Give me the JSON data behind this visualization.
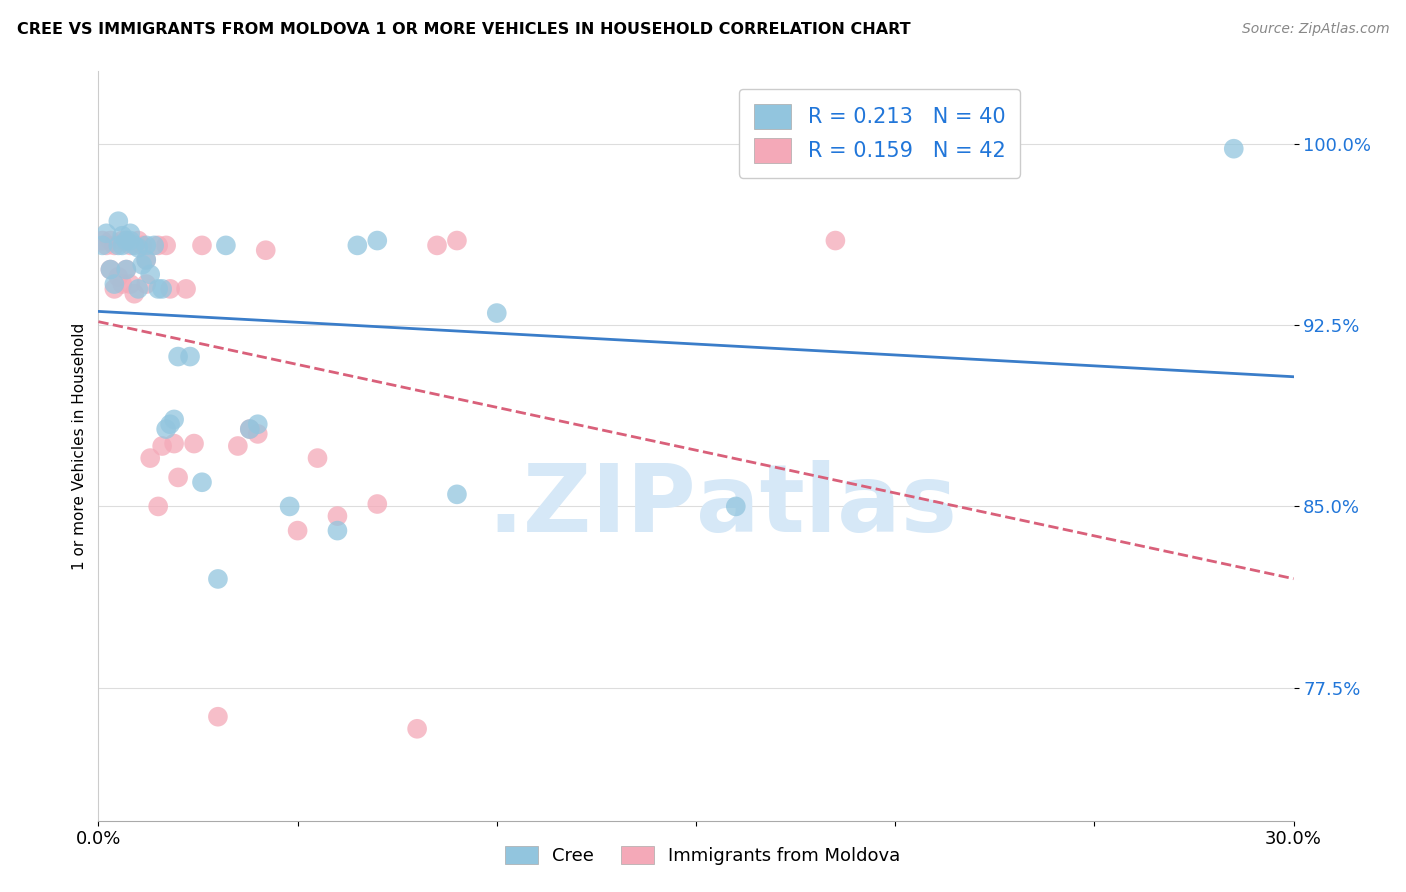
{
  "title": "CREE VS IMMIGRANTS FROM MOLDOVA 1 OR MORE VEHICLES IN HOUSEHOLD CORRELATION CHART",
  "source": "Source: ZipAtlas.com",
  "ylabel": "1 or more Vehicles in Household",
  "xlim": [
    0.0,
    0.3
  ],
  "ylim": [
    0.72,
    1.03
  ],
  "yticks": [
    0.775,
    0.85,
    0.925,
    1.0
  ],
  "ytick_labels": [
    "77.5%",
    "85.0%",
    "92.5%",
    "100.0%"
  ],
  "xticks": [
    0.0,
    0.05,
    0.1,
    0.15,
    0.2,
    0.25,
    0.3
  ],
  "xtick_labels": [
    "0.0%",
    "",
    "",
    "",
    "",
    "",
    "30.0%"
  ],
  "bottom_legend_labels": [
    "Cree",
    "Immigrants from Moldova"
  ],
  "R_cree": 0.213,
  "N_cree": 40,
  "R_moldova": 0.159,
  "N_moldova": 42,
  "cree_color": "#92c5de",
  "moldova_color": "#f4a9b8",
  "cree_line_color": "#3a7dc9",
  "moldova_line_color": "#d9607a",
  "tick_color": "#2176d9",
  "watermark_color": "#d6e8f7",
  "cree_x": [
    0.001,
    0.002,
    0.003,
    0.004,
    0.005,
    0.005,
    0.006,
    0.006,
    0.007,
    0.007,
    0.008,
    0.008,
    0.009,
    0.01,
    0.01,
    0.011,
    0.012,
    0.012,
    0.013,
    0.014,
    0.015,
    0.016,
    0.017,
    0.018,
    0.019,
    0.02,
    0.023,
    0.026,
    0.03,
    0.032,
    0.038,
    0.04,
    0.048,
    0.06,
    0.065,
    0.07,
    0.09,
    0.1,
    0.16,
    0.285
  ],
  "cree_y": [
    0.958,
    0.963,
    0.948,
    0.942,
    0.958,
    0.968,
    0.962,
    0.958,
    0.96,
    0.948,
    0.96,
    0.963,
    0.958,
    0.94,
    0.957,
    0.95,
    0.958,
    0.952,
    0.946,
    0.958,
    0.94,
    0.94,
    0.882,
    0.884,
    0.886,
    0.912,
    0.912,
    0.86,
    0.82,
    0.958,
    0.882,
    0.884,
    0.85,
    0.84,
    0.958,
    0.96,
    0.855,
    0.93,
    0.85,
    0.998
  ],
  "moldova_x": [
    0.001,
    0.002,
    0.003,
    0.003,
    0.004,
    0.004,
    0.005,
    0.006,
    0.006,
    0.007,
    0.007,
    0.008,
    0.008,
    0.009,
    0.01,
    0.011,
    0.012,
    0.012,
    0.013,
    0.015,
    0.015,
    0.016,
    0.017,
    0.018,
    0.019,
    0.02,
    0.022,
    0.024,
    0.026,
    0.03,
    0.035,
    0.038,
    0.04,
    0.042,
    0.05,
    0.055,
    0.06,
    0.07,
    0.08,
    0.085,
    0.09,
    0.185
  ],
  "moldova_y": [
    0.96,
    0.958,
    0.948,
    0.96,
    0.958,
    0.94,
    0.945,
    0.942,
    0.96,
    0.96,
    0.948,
    0.942,
    0.958,
    0.938,
    0.96,
    0.958,
    0.952,
    0.942,
    0.87,
    0.958,
    0.85,
    0.875,
    0.958,
    0.94,
    0.876,
    0.862,
    0.94,
    0.876,
    0.958,
    0.763,
    0.875,
    0.882,
    0.88,
    0.956,
    0.84,
    0.87,
    0.846,
    0.851,
    0.758,
    0.958,
    0.96,
    0.96
  ]
}
